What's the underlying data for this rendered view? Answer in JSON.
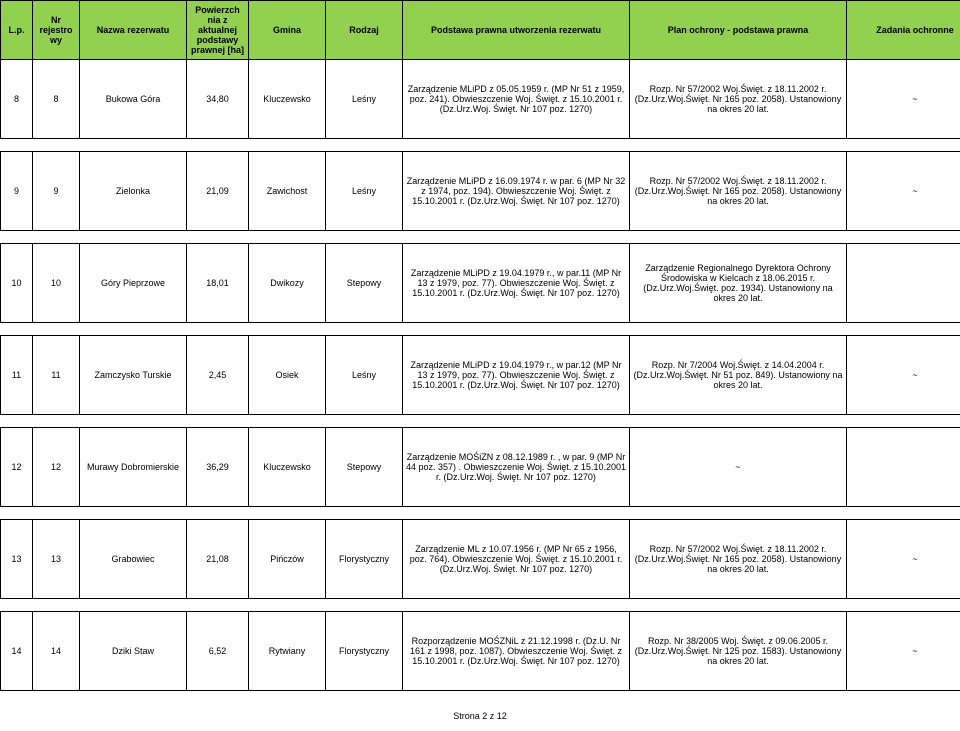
{
  "header": {
    "lp": "L.p.",
    "nr": "Nr rejestro wy",
    "nazwa": "Nazwa rezerwatu",
    "pow": "Powierzch nia z aktualnej podstawy prawnej [ha]",
    "gmina": "Gmina",
    "rodzaj": "Rodzaj",
    "podstawa": "Podstawa prawna utworzenia rezerwatu",
    "plan": "Plan ochrony - podstawa prawna",
    "zadania": "Zadania ochronne"
  },
  "rows": [
    {
      "lp": "8",
      "nr": "8",
      "nazwa": "Bukowa Góra",
      "pow": "34,80",
      "gmina": "Kluczewsko",
      "rodzaj": "Leśny",
      "podstawa": "Zarządzenie MLiPD z 05.05.1959 r. (MP Nr 51 z 1959, poz. 241). Obwieszczenie Woj. Święt. z 15.10.2001 r. (Dz.Urz.Woj. Święt. Nr 107 poz. 1270)",
      "plan": "Rozp. Nr 57/2002 Woj.Święt. z 18.11.2002 r. (Dz.Urz.Woj.Święt. Nr 165 poz. 2058). Ustanowiony na okres 20 lat.",
      "zadania": "~"
    },
    {
      "lp": "9",
      "nr": "9",
      "nazwa": "Zielonka",
      "pow": "21,09",
      "gmina": "Zawichost",
      "rodzaj": "Leśny",
      "podstawa": "Zarządzenie MLiPD z 16.09.1974 r. w par. 6 (MP Nr 32 z 1974, poz. 194). Obwieszczenie Woj. Święt. z 15.10.2001 r. (Dz.Urz.Woj. Święt. Nr 107 poz. 1270)",
      "plan": "Rozp. Nr 57/2002 Woj.Święt. z 18.11.2002 r. (Dz.Urz.Woj.Święt. Nr 165 poz. 2058). Ustanowiony na okres 20 lat.",
      "zadania": "~"
    },
    {
      "lp": "10",
      "nr": "10",
      "nazwa": "Góry Pieprzowe",
      "pow": "18,01",
      "gmina": "Dwikozy",
      "rodzaj": "Stepowy",
      "podstawa": "Zarządzenie MLiPD z 19.04.1979 r., w par.11 (MP Nr 13 z 1979, poz. 77). Obwieszczenie Woj. Święt. z 15.10.2001 r. (Dz.Urz.Woj. Święt. Nr 107 poz. 1270)",
      "plan": "Zarządzenie Regionalnego Dyrektora Ochrony Środowiska w Kielcach z 18.06.2015 r. (Dz.Urz.Woj.Święt. poz. 1934). Ustanowiony na okres 20 lat.",
      "zadania": ""
    },
    {
      "lp": "11",
      "nr": "11",
      "nazwa": "Zamczysko Turskie",
      "pow": "2,45",
      "gmina": "Osiek",
      "rodzaj": "Leśny",
      "podstawa": "Zarządzenie MLiPD z 19.04.1979 r., w par.12 (MP Nr 13 z 1979, poz. 77). Obwieszczenie Woj. Święt. z 15.10.2001 r. (Dz.Urz.Woj. Święt. Nr 107 poz. 1270)",
      "plan": "Rozp. Nr 7/2004 Woj.Święt. z 14.04.2004 r. (Dz.Urz.Woj.Święt. Nr 51 poz. 849). Ustanowiony na okres 20 lat.",
      "zadania": "~"
    },
    {
      "lp": "12",
      "nr": "12",
      "nazwa": "Murawy Dobromierskie",
      "pow": "36,29",
      "gmina": "Kluczewsko",
      "rodzaj": "Stepowy",
      "podstawa": "Zarządzenie MOŚiZN z 08.12.1989 r. , w par. 9 (MP Nr 44 poz. 357) . Obwieszczenie Woj. Święt. z 15.10.2001 r. (Dz.Urz.Woj. Święt. Nr 107 poz. 1270)",
      "plan": "~",
      "zadania": ""
    },
    {
      "lp": "13",
      "nr": "13",
      "nazwa": "Grabowiec",
      "pow": "21,08",
      "gmina": "Pińczów",
      "rodzaj": "Florystyczny",
      "podstawa": "Zarządzenie ML z 10.07.1956 r. (MP Nr 65 z 1956, poz. 764). Obwieszczenie Woj. Święt. z 15.10.2001 r.  (Dz.Urz.Woj. Święt. Nr 107 poz. 1270)",
      "plan": "Rozp. Nr 57/2002 Woj.Święt. z 18.11.2002 r. (Dz.Urz.Woj.Święt. Nr 165 poz. 2058). Ustanowiony na okres 20 lat.",
      "zadania": "~"
    },
    {
      "lp": "14",
      "nr": "14",
      "nazwa": "Dziki Staw",
      "pow": "6,52",
      "gmina": "Rytwiany",
      "rodzaj": "Florystyczny",
      "podstawa": "Rozporządzenie MOŚZNiL z 21.12.1998 r. (Dz.U. Nr 161 z 1998, poz. 1087). Obwieszczenie Woj. Święt. z 15.10.2001 r. (Dz.Urz.Woj. Święt. Nr 107 poz. 1270)",
      "plan": "Rozp. Nr 38/2005 Woj. Święt. z 09.06.2005 r. (Dz.Urz.Woj.Święt. Nr 125 poz. 1583). Ustanowiony na okres 20 lat.",
      "zadania": "~"
    }
  ],
  "footer": "Strona 2 z 12"
}
